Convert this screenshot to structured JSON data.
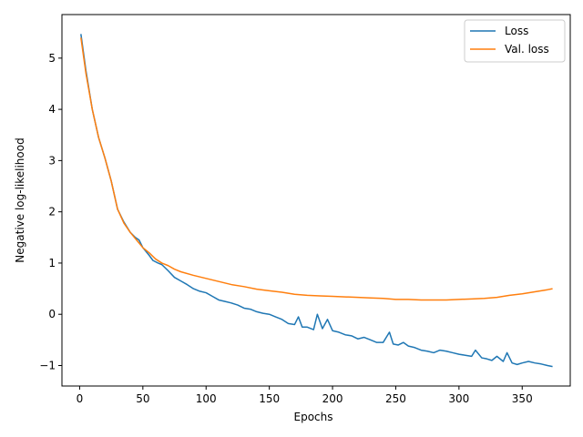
{
  "chart_data": {
    "type": "line",
    "title": "",
    "xlabel": "Epochs",
    "ylabel": "Negative log-likelihood",
    "xlim": [
      -14,
      388
    ],
    "ylim": [
      -1.4,
      5.85
    ],
    "xticks": [
      0,
      50,
      100,
      150,
      200,
      250,
      300,
      350
    ],
    "xtick_labels": [
      "0",
      "50",
      "100",
      "150",
      "200",
      "250",
      "300",
      "350"
    ],
    "yticks": [
      -1,
      0,
      1,
      2,
      3,
      4,
      5
    ],
    "ytick_labels": [
      "−1",
      "0",
      "1",
      "2",
      "3",
      "4",
      "5"
    ],
    "grid": false,
    "legend_position": "top-right",
    "series": [
      {
        "name": "Loss",
        "color": "#1f77b4",
        "x": [
          1,
          5,
          10,
          15,
          20,
          25,
          30,
          35,
          40,
          44,
          47,
          50,
          55,
          58,
          62,
          65,
          70,
          75,
          80,
          85,
          90,
          95,
          100,
          105,
          110,
          115,
          120,
          125,
          130,
          135,
          140,
          145,
          150,
          155,
          160,
          165,
          170,
          173,
          176,
          180,
          185,
          188,
          192,
          196,
          200,
          205,
          210,
          215,
          220,
          225,
          230,
          235,
          240,
          245,
          248,
          252,
          256,
          260,
          265,
          270,
          275,
          280,
          285,
          290,
          295,
          300,
          305,
          310,
          313,
          318,
          322,
          326,
          330,
          335,
          338,
          342,
          346,
          350,
          355,
          360,
          365,
          370,
          374
        ],
        "y": [
          5.47,
          4.75,
          4.0,
          3.45,
          3.05,
          2.6,
          2.05,
          1.8,
          1.6,
          1.5,
          1.45,
          1.3,
          1.15,
          1.05,
          1.0,
          0.97,
          0.85,
          0.72,
          0.65,
          0.58,
          0.5,
          0.45,
          0.42,
          0.35,
          0.28,
          0.25,
          0.22,
          0.18,
          0.12,
          0.1,
          0.05,
          0.02,
          0.0,
          -0.05,
          -0.1,
          -0.18,
          -0.2,
          -0.05,
          -0.25,
          -0.25,
          -0.3,
          0.0,
          -0.28,
          -0.1,
          -0.32,
          -0.35,
          -0.4,
          -0.42,
          -0.48,
          -0.45,
          -0.5,
          -0.55,
          -0.55,
          -0.35,
          -0.58,
          -0.6,
          -0.55,
          -0.62,
          -0.65,
          -0.7,
          -0.72,
          -0.75,
          -0.7,
          -0.72,
          -0.75,
          -0.78,
          -0.8,
          -0.82,
          -0.7,
          -0.85,
          -0.87,
          -0.9,
          -0.82,
          -0.92,
          -0.75,
          -0.95,
          -0.98,
          -0.95,
          -0.92,
          -0.95,
          -0.97,
          -1.0,
          -1.02
        ]
      },
      {
        "name": "Val. loss",
        "color": "#ff7f0e",
        "x": [
          1,
          5,
          10,
          15,
          20,
          25,
          30,
          35,
          40,
          45,
          50,
          55,
          60,
          65,
          70,
          75,
          80,
          90,
          100,
          110,
          120,
          130,
          140,
          150,
          160,
          170,
          180,
          190,
          200,
          210,
          220,
          230,
          240,
          250,
          260,
          270,
          280,
          290,
          300,
          310,
          320,
          330,
          340,
          350,
          355,
          360,
          365,
          370,
          374
        ],
        "y": [
          5.4,
          4.7,
          4.0,
          3.45,
          3.05,
          2.6,
          2.05,
          1.78,
          1.6,
          1.45,
          1.3,
          1.2,
          1.08,
          1.0,
          0.95,
          0.88,
          0.83,
          0.76,
          0.7,
          0.64,
          0.58,
          0.54,
          0.49,
          0.46,
          0.43,
          0.39,
          0.37,
          0.36,
          0.35,
          0.34,
          0.33,
          0.32,
          0.31,
          0.29,
          0.29,
          0.28,
          0.28,
          0.28,
          0.29,
          0.3,
          0.31,
          0.33,
          0.37,
          0.4,
          0.42,
          0.44,
          0.46,
          0.48,
          0.5
        ]
      }
    ]
  }
}
